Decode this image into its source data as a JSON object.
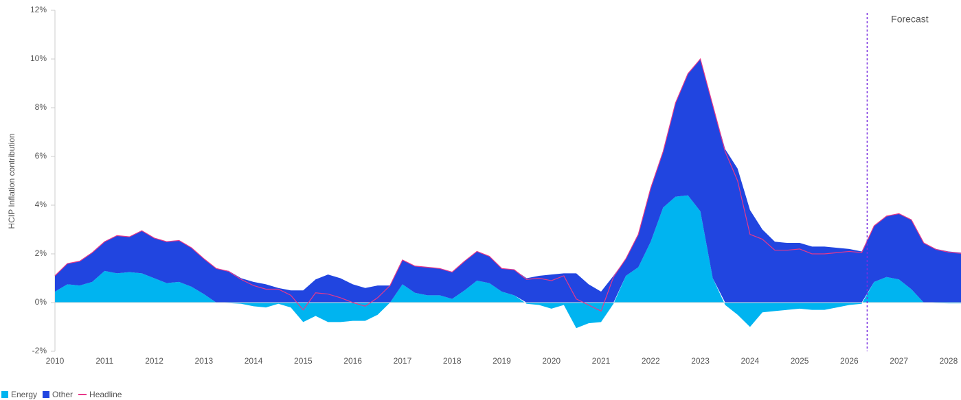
{
  "chart_data": {
    "type": "area",
    "y_label": "HCIP Inflation contribution",
    "annotation": "Forecast",
    "forecast_x": 2026.36,
    "x": [
      2010,
      2010.25,
      2010.5,
      2010.75,
      2011,
      2011.25,
      2011.5,
      2011.75,
      2012,
      2012.25,
      2012.5,
      2012.75,
      2013,
      2013.25,
      2013.5,
      2013.75,
      2014,
      2014.25,
      2014.5,
      2014.75,
      2015,
      2015.25,
      2015.5,
      2015.75,
      2016,
      2016.25,
      2016.5,
      2016.75,
      2017,
      2017.25,
      2017.5,
      2017.75,
      2018,
      2018.25,
      2018.5,
      2018.75,
      2019,
      2019.25,
      2019.5,
      2019.75,
      2020,
      2020.25,
      2020.5,
      2020.75,
      2021,
      2021.25,
      2021.5,
      2021.75,
      2022,
      2022.25,
      2022.5,
      2022.75,
      2023,
      2023.25,
      2023.5,
      2023.75,
      2024,
      2024.25,
      2024.5,
      2024.75,
      2025,
      2025.25,
      2025.5,
      2025.75,
      2026,
      2026.25,
      2026.5,
      2026.75,
      2027,
      2027.25,
      2027.5,
      2027.75,
      2028,
      2028.25
    ],
    "series": [
      {
        "name": "Energy",
        "color": "#00b4f0",
        "kind": "area",
        "values": [
          0.45,
          0.75,
          0.7,
          0.85,
          1.3,
          1.2,
          1.25,
          1.2,
          1.0,
          0.8,
          0.85,
          0.65,
          0.35,
          0,
          -0.02,
          -0.05,
          -0.15,
          -0.2,
          -0.05,
          -0.2,
          -0.8,
          -0.55,
          -0.8,
          -0.8,
          -0.75,
          -0.75,
          -0.5,
          0,
          0.75,
          0.4,
          0.3,
          0.3,
          0.15,
          0.5,
          0.9,
          0.8,
          0.45,
          0.3,
          -0.05,
          -0.1,
          -0.25,
          -0.1,
          -1.05,
          -0.85,
          -0.8,
          -0.05,
          1.1,
          1.45,
          2.5,
          3.9,
          4.35,
          4.4,
          3.75,
          1.0,
          -0.1,
          -0.5,
          -1.0,
          -0.4,
          -0.35,
          -0.3,
          -0.25,
          -0.3,
          -0.3,
          -0.2,
          -0.1,
          -0.05,
          0.85,
          1.05,
          0.95,
          0.55,
          0,
          -0.02,
          -0.03,
          -0.03
        ]
      },
      {
        "name": "Other",
        "color": "#2145e0",
        "kind": "area",
        "values": [
          0.65,
          0.85,
          1.0,
          1.2,
          1.2,
          1.55,
          1.45,
          1.75,
          1.65,
          1.7,
          1.7,
          1.6,
          1.45,
          1.4,
          1.3,
          1.0,
          0.85,
          0.75,
          0.6,
          0.5,
          0.5,
          0.95,
          1.15,
          1.0,
          0.75,
          0.6,
          0.7,
          0.7,
          1.0,
          1.1,
          1.15,
          1.1,
          1.1,
          1.2,
          1.2,
          1.1,
          0.95,
          1.05,
          1.0,
          1.1,
          1.15,
          1.2,
          1.2,
          0.75,
          0.45,
          1.1,
          0.7,
          1.35,
          2.2,
          2.3,
          3.85,
          5.0,
          6.25,
          7.1,
          6.3,
          5.5,
          3.8,
          3.0,
          2.5,
          2.45,
          2.45,
          2.3,
          2.3,
          2.25,
          2.2,
          2.1,
          2.3,
          2.5,
          2.7,
          2.85,
          2.45,
          2.2,
          2.1,
          2.05
        ]
      },
      {
        "name": "Headline",
        "color": "#e8388a",
        "kind": "line",
        "values": [
          1.1,
          1.6,
          1.7,
          2.05,
          2.5,
          2.75,
          2.7,
          2.95,
          2.65,
          2.5,
          2.55,
          2.25,
          1.8,
          1.4,
          1.28,
          0.95,
          0.7,
          0.55,
          0.55,
          0.3,
          -0.3,
          0.4,
          0.35,
          0.2,
          0,
          -0.15,
          0.2,
          0.7,
          1.75,
          1.5,
          1.45,
          1.4,
          1.25,
          1.7,
          2.1,
          1.9,
          1.4,
          1.35,
          0.95,
          1.0,
          0.9,
          1.1,
          0.15,
          -0.1,
          -0.35,
          1.05,
          1.8,
          2.8,
          4.7,
          6.2,
          8.2,
          9.4,
          10.0,
          8.1,
          6.2,
          5.0,
          2.8,
          2.6,
          2.15,
          2.15,
          2.2,
          2.0,
          2.0,
          2.05,
          2.1,
          2.05,
          3.15,
          3.55,
          3.65,
          3.4,
          2.45,
          2.18,
          2.07,
          2.02
        ]
      }
    ],
    "xlim": [
      2010,
      2028.25
    ],
    "xticks": [
      2010,
      2011,
      2012,
      2013,
      2014,
      2015,
      2016,
      2017,
      2018,
      2019,
      2020,
      2021,
      2022,
      2023,
      2024,
      2025,
      2026,
      2027,
      2028
    ],
    "ylim": [
      -2,
      12
    ],
    "yticks": [
      {
        "value": -2,
        "label": "-2%"
      },
      {
        "value": 0,
        "label": "0%"
      },
      {
        "value": 2,
        "label": "2%"
      },
      {
        "value": 4,
        "label": "4%"
      },
      {
        "value": 6,
        "label": "6%"
      },
      {
        "value": 8,
        "label": "8%"
      },
      {
        "value": 10,
        "label": "10%"
      },
      {
        "value": 12,
        "label": "12%"
      }
    ],
    "grid": false,
    "legend": "bottom-left"
  }
}
